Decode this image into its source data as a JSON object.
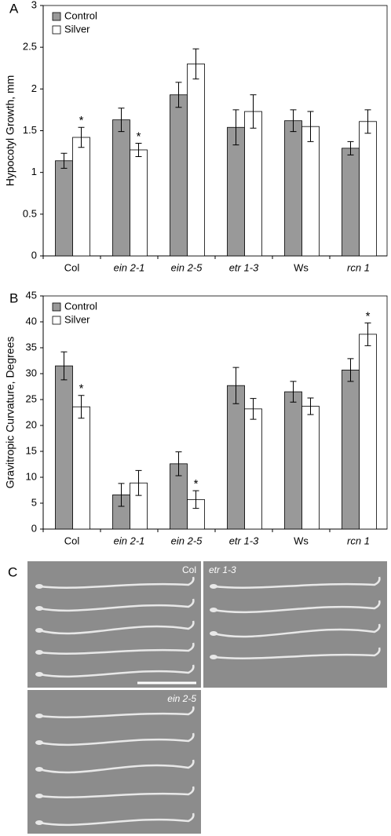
{
  "chart_data": [
    {
      "type": "bar",
      "panel_label": "A",
      "y_label": "Hypocotyl Growth, mm",
      "categories": [
        "Col",
        "ein 2-1",
        "ein 2-5",
        "etr 1-3",
        "Ws",
        "rcn 1"
      ],
      "series": [
        {
          "name": "Control",
          "color": "#999999",
          "values": [
            1.14,
            1.63,
            1.93,
            1.54,
            1.62,
            1.29
          ],
          "errors": [
            0.09,
            0.14,
            0.15,
            0.21,
            0.13,
            0.08
          ],
          "significance": [
            null,
            null,
            null,
            null,
            null,
            null
          ]
        },
        {
          "name": "Silver",
          "color": "#ffffff",
          "values": [
            1.42,
            1.27,
            2.3,
            1.73,
            1.55,
            1.61
          ],
          "errors": [
            0.12,
            0.08,
            0.18,
            0.2,
            0.18,
            0.14
          ],
          "significance": [
            "*",
            "*",
            null,
            null,
            null,
            null
          ]
        }
      ],
      "ylim": [
        0,
        3
      ],
      "yticks": [
        0,
        0.5,
        1,
        1.5,
        2,
        2.5,
        3
      ],
      "legend": "top-left",
      "grid": false
    },
    {
      "type": "bar",
      "panel_label": "B",
      "y_label": "Gravitropic Curvature, Degrees",
      "categories": [
        "Col",
        "ein 2-1",
        "ein 2-5",
        "etr 1-3",
        "Ws",
        "rcn 1"
      ],
      "series": [
        {
          "name": "Control",
          "color": "#999999",
          "values": [
            31.5,
            6.6,
            12.6,
            27.7,
            26.5,
            30.7
          ],
          "errors": [
            2.7,
            2.2,
            2.3,
            3.5,
            2.0,
            2.2
          ],
          "significance": [
            null,
            null,
            null,
            null,
            null,
            null
          ]
        },
        {
          "name": "Silver",
          "color": "#ffffff",
          "values": [
            23.6,
            8.9,
            5.7,
            23.2,
            23.7,
            37.6
          ],
          "errors": [
            2.2,
            2.4,
            1.7,
            2.0,
            1.6,
            2.2
          ],
          "significance": [
            "*",
            null,
            "*",
            null,
            null,
            "*"
          ]
        }
      ],
      "ylim": [
        0,
        45
      ],
      "yticks": [
        0,
        5,
        10,
        15,
        20,
        25,
        30,
        35,
        40,
        45
      ],
      "legend": "top-left",
      "grid": false
    }
  ],
  "panel_c": {
    "label": "C",
    "images": [
      "Col",
      "etr 1-3",
      "ein 2-5"
    ]
  }
}
